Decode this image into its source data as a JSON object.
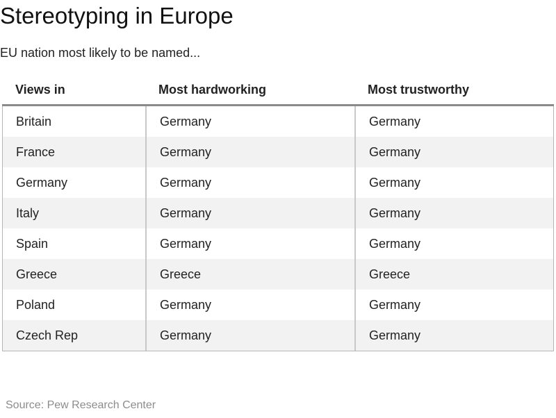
{
  "chart_data": {
    "type": "table",
    "title": "Stereotyping in Europe",
    "subtitle": "EU nation most likely to be named...",
    "columns": [
      "Views in",
      "Most hardworking",
      "Most trustworthy"
    ],
    "rows": [
      [
        "Britain",
        "Germany",
        "Germany"
      ],
      [
        "France",
        "Germany",
        "Germany"
      ],
      [
        "Germany",
        "Germany",
        "Germany"
      ],
      [
        "Italy",
        "Germany",
        "Germany"
      ],
      [
        "Spain",
        "Germany",
        "Germany"
      ],
      [
        "Greece",
        "Greece",
        "Greece"
      ],
      [
        "Poland",
        "Germany",
        "Germany"
      ],
      [
        "Czech Rep",
        "Germany",
        "Germany"
      ]
    ],
    "source": "Source: Pew Research Center"
  }
}
